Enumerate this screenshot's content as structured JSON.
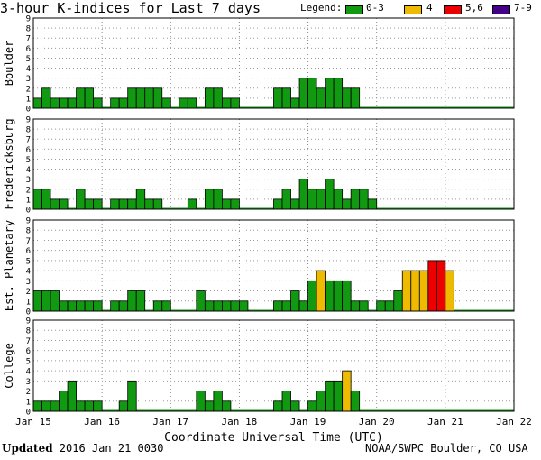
{
  "header": {
    "title": "3-hour K-indices for Last 7 days",
    "legend_label": "Legend:",
    "legend": [
      {
        "label": "0-3",
        "color": "#119911"
      },
      {
        "label": "4",
        "color": "#eebb00"
      },
      {
        "label": "5,6",
        "color": "#ee0000"
      },
      {
        "label": "7-9",
        "color": "#440088"
      }
    ]
  },
  "footer": {
    "updated_label": "Updated",
    "updated_value": "2016 Jan 21 0030",
    "credit": "NOAA/SWPC Boulder, CO USA"
  },
  "chart_data": {
    "type": "bar",
    "xlabel": "Coordinate Universal Time (UTC)",
    "x_ticks": [
      "Jan 15",
      "Jan 16",
      "Jan 17",
      "Jan 18",
      "Jan 19",
      "Jan 20",
      "Jan 21",
      "Jan 22"
    ],
    "ylim": [
      0,
      9
    ],
    "y_ticks": [
      "0",
      "1",
      "2",
      "3",
      "4",
      "5",
      "6",
      "7",
      "8",
      "9"
    ],
    "grid": true,
    "bins_per_day": 8,
    "panels": [
      {
        "name": "Boulder",
        "values": [
          1,
          2,
          1,
          1,
          1,
          2,
          2,
          1,
          0,
          1,
          1,
          2,
          2,
          2,
          2,
          1,
          0,
          1,
          1,
          0,
          2,
          2,
          1,
          1,
          0,
          0,
          0,
          0,
          2,
          2,
          1,
          3,
          3,
          2,
          3,
          3,
          2,
          2,
          0,
          0,
          0,
          0,
          0,
          0,
          0,
          0,
          0,
          0,
          0,
          0,
          0,
          0,
          0,
          0,
          0,
          0
        ]
      },
      {
        "name": "Fredericksburg",
        "values": [
          2,
          2,
          1,
          1,
          0,
          2,
          1,
          1,
          0,
          1,
          1,
          1,
          2,
          1,
          1,
          0,
          0,
          0,
          1,
          0,
          2,
          2,
          1,
          1,
          0,
          0,
          0,
          0,
          1,
          2,
          1,
          3,
          2,
          2,
          3,
          2,
          1,
          2,
          2,
          1,
          0,
          0,
          0,
          0,
          0,
          0,
          0,
          0,
          0,
          0,
          0,
          0,
          0,
          0,
          0,
          0
        ]
      },
      {
        "name": "Est. Planetary",
        "values": [
          2,
          2,
          2,
          1,
          1,
          1,
          1,
          1,
          0,
          1,
          1,
          2,
          2,
          0,
          1,
          1,
          0,
          0,
          0,
          2,
          1,
          1,
          1,
          1,
          1,
          0,
          0,
          0,
          1,
          1,
          2,
          1,
          3,
          4,
          3,
          3,
          3,
          1,
          1,
          0,
          1,
          1,
          2,
          4,
          4,
          4,
          5,
          5,
          4,
          0,
          0,
          0,
          0,
          0,
          0,
          0
        ]
      },
      {
        "name": "College",
        "values": [
          1,
          1,
          1,
          2,
          3,
          1,
          1,
          1,
          0,
          0,
          1,
          3,
          0,
          0,
          0,
          0,
          0,
          0,
          0,
          2,
          1,
          2,
          1,
          0,
          0,
          0,
          0,
          0,
          1,
          2,
          1,
          0,
          1,
          2,
          3,
          3,
          4,
          2,
          0,
          0,
          0,
          0,
          0,
          0,
          0,
          0,
          0,
          0,
          0,
          0,
          0,
          0,
          0,
          0,
          0,
          0
        ]
      }
    ]
  }
}
